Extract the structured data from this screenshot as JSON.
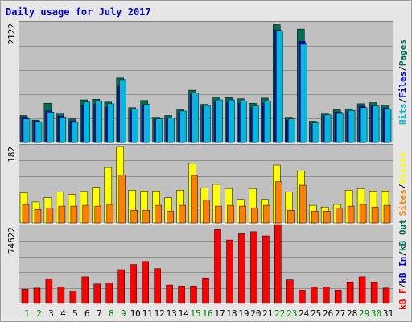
{
  "title": "Daily usage for July 2017",
  "colors": {
    "title": "#0000cc",
    "pages": "#006c54",
    "files": "#0000cc",
    "hits": "#00b8e0",
    "visits": "#ffff00",
    "sites": "#ff8000",
    "kbin": "#0000cc",
    "kbout": "#006c54",
    "kbf": "#ff0000",
    "day_weekday": "#000000",
    "day_weekend": "#008000"
  },
  "chart_data": [
    {
      "type": "bar",
      "ylim": [
        0,
        2122
      ],
      "ymax_label": "2122",
      "legend": [
        {
          "text": "Hits",
          "color": "#00b8e0"
        },
        {
          "text": "/",
          "color": "#000000"
        },
        {
          "text": "Files",
          "color": "#0000cc"
        },
        {
          "text": "/",
          "color": "#000000"
        },
        {
          "text": "Pages",
          "color": "#006c54"
        }
      ],
      "categories": [
        "1",
        "2",
        "3",
        "4",
        "5",
        "6",
        "7",
        "8",
        "9",
        "10",
        "11",
        "12",
        "13",
        "14",
        "15",
        "16",
        "17",
        "18",
        "19",
        "20",
        "21",
        "22",
        "23",
        "24",
        "25",
        "26",
        "27",
        "28",
        "29",
        "30",
        "31"
      ],
      "series": [
        {
          "name": "Pages",
          "values": [
            480,
            400,
            700,
            520,
            420,
            760,
            770,
            720,
            1150,
            620,
            750,
            450,
            480,
            580,
            930,
            680,
            810,
            800,
            780,
            700,
            790,
            2100,
            450,
            2020,
            380,
            520,
            590,
            600,
            690,
            710,
            670
          ]
        },
        {
          "name": "Files",
          "values": [
            450,
            380,
            560,
            470,
            380,
            660,
            680,
            630,
            1000,
            560,
            670,
            410,
            430,
            530,
            850,
            640,
            720,
            720,
            700,
            620,
            700,
            2000,
            400,
            1800,
            330,
            470,
            540,
            550,
            640,
            650,
            610
          ]
        },
        {
          "name": "Hits",
          "values": [
            420,
            370,
            540,
            450,
            360,
            720,
            740,
            690,
            1120,
            600,
            680,
            420,
            440,
            560,
            880,
            660,
            760,
            760,
            740,
            650,
            740,
            1990,
            420,
            1750,
            350,
            490,
            530,
            570,
            620,
            650,
            600
          ]
        }
      ]
    },
    {
      "type": "bar",
      "ylim": [
        0,
        182
      ],
      "ymax_label": "182",
      "legend": [
        {
          "text": "Sites",
          "color": "#ff8000"
        },
        {
          "text": "/",
          "color": "#000000"
        },
        {
          "text": "Visits",
          "color": "#ffff00"
        }
      ],
      "categories": [
        "1",
        "2",
        "3",
        "4",
        "5",
        "6",
        "7",
        "8",
        "9",
        "10",
        "11",
        "12",
        "13",
        "14",
        "15",
        "16",
        "17",
        "18",
        "19",
        "20",
        "21",
        "22",
        "23",
        "24",
        "25",
        "26",
        "27",
        "28",
        "29",
        "30",
        "31"
      ],
      "series": [
        {
          "name": "Visits",
          "values": [
            72,
            50,
            60,
            74,
            68,
            75,
            85,
            132,
            182,
            78,
            76,
            76,
            60,
            78,
            142,
            84,
            92,
            82,
            56,
            82,
            56,
            138,
            74,
            124,
            42,
            38,
            44,
            78,
            82,
            76,
            76
          ]
        },
        {
          "name": "Sites",
          "values": [
            44,
            32,
            36,
            40,
            40,
            42,
            40,
            44,
            114,
            30,
            30,
            42,
            28,
            42,
            112,
            54,
            40,
            42,
            40,
            36,
            42,
            98,
            30,
            90,
            28,
            28,
            36,
            40,
            44,
            38,
            42
          ]
        }
      ]
    },
    {
      "type": "bar",
      "ylim": [
        0,
        74622
      ],
      "ymax_label": "74622",
      "legend": [
        {
          "text": "kB F",
          "color": "#ff0000"
        },
        {
          "text": "/",
          "color": "#000000"
        },
        {
          "text": "kB In",
          "color": "#0000cc"
        },
        {
          "text": "/",
          "color": "#000000"
        },
        {
          "text": "kB Out",
          "color": "#006c54"
        }
      ],
      "categories": [
        "1",
        "2",
        "3",
        "4",
        "5",
        "6",
        "7",
        "8",
        "9",
        "10",
        "11",
        "12",
        "13",
        "14",
        "15",
        "16",
        "17",
        "18",
        "19",
        "20",
        "21",
        "22",
        "23",
        "24",
        "25",
        "26",
        "27",
        "28",
        "29",
        "30",
        "31"
      ],
      "series": [
        {
          "name": "kB F",
          "values": [
            14000,
            15000,
            24000,
            16000,
            12000,
            26000,
            19000,
            20000,
            33000,
            38000,
            41000,
            34000,
            18000,
            17000,
            17000,
            25000,
            72000,
            62000,
            68000,
            70000,
            66000,
            77000,
            23000,
            13000,
            16000,
            16000,
            13000,
            21000,
            26000,
            21000,
            15000
          ]
        }
      ]
    }
  ],
  "days": [
    {
      "label": "1",
      "weekend": true
    },
    {
      "label": "2",
      "weekend": true
    },
    {
      "label": "3",
      "weekend": false
    },
    {
      "label": "4",
      "weekend": false
    },
    {
      "label": "5",
      "weekend": false
    },
    {
      "label": "6",
      "weekend": false
    },
    {
      "label": "7",
      "weekend": false
    },
    {
      "label": "8",
      "weekend": true
    },
    {
      "label": "9",
      "weekend": true
    },
    {
      "label": "10",
      "weekend": false
    },
    {
      "label": "11",
      "weekend": false
    },
    {
      "label": "12",
      "weekend": false
    },
    {
      "label": "13",
      "weekend": false
    },
    {
      "label": "14",
      "weekend": false
    },
    {
      "label": "15",
      "weekend": true
    },
    {
      "label": "16",
      "weekend": true
    },
    {
      "label": "17",
      "weekend": false
    },
    {
      "label": "18",
      "weekend": false
    },
    {
      "label": "19",
      "weekend": false
    },
    {
      "label": "20",
      "weekend": false
    },
    {
      "label": "21",
      "weekend": false
    },
    {
      "label": "22",
      "weekend": true
    },
    {
      "label": "23",
      "weekend": true
    },
    {
      "label": "24",
      "weekend": false
    },
    {
      "label": "25",
      "weekend": false
    },
    {
      "label": "26",
      "weekend": false
    },
    {
      "label": "27",
      "weekend": false
    },
    {
      "label": "28",
      "weekend": false
    },
    {
      "label": "29",
      "weekend": true
    },
    {
      "label": "30",
      "weekend": true
    },
    {
      "label": "31",
      "weekend": false
    }
  ]
}
